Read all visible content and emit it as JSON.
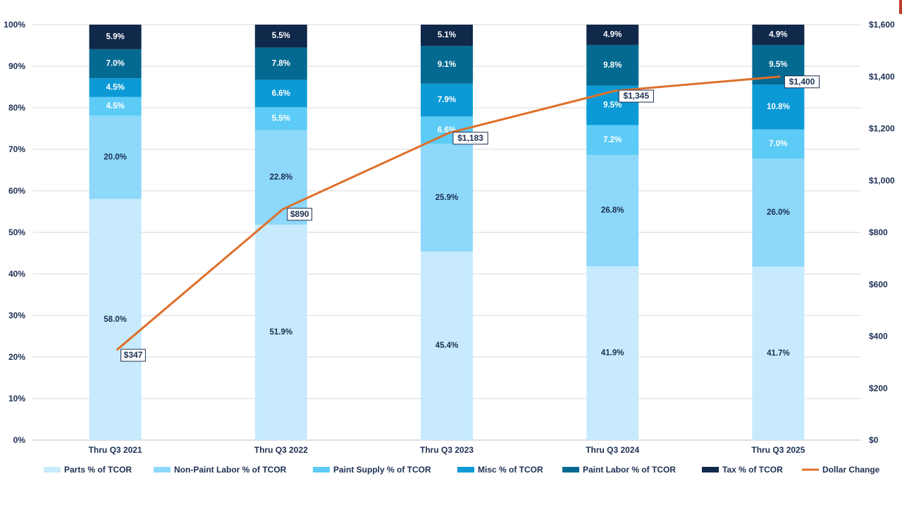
{
  "chart_data": {
    "type": "bar",
    "stacked": true,
    "categories": [
      "Thru Q3 2021",
      "Thru Q3 2022",
      "Thru Q3 2023",
      "Thru Q3 2024",
      "Thru Q3 2025"
    ],
    "series": [
      {
        "name": "Parts % of TCOR",
        "color": "#c7ebfc",
        "label_color": "#1c2f52",
        "values": [
          58.0,
          51.9,
          45.4,
          41.9,
          41.7
        ],
        "labels": [
          "58.0%",
          "51.9%",
          "45.4%",
          "41.9%",
          "41.7%"
        ]
      },
      {
        "name": "Non-Paint Labor % of TCOR",
        "color": "#8dd8fb",
        "label_color": "#1c2f52",
        "values": [
          20.0,
          22.8,
          25.9,
          26.8,
          26.0
        ],
        "labels": [
          "20.0%",
          "22.8%",
          "25.9%",
          "26.8%",
          "26.0%"
        ]
      },
      {
        "name": "Paint Supply % of TCOR",
        "color": "#5ccbf6",
        "label_color": "#ffffff",
        "values": [
          4.5,
          5.5,
          6.6,
          7.2,
          7.0
        ],
        "labels": [
          "4.5%",
          "5.5%",
          "6.6%",
          "7.2%",
          "7.0%"
        ]
      },
      {
        "name": "Misc % of TCOR",
        "color": "#0b9ad6",
        "label_color": "#ffffff",
        "values": [
          4.5,
          6.6,
          7.9,
          9.5,
          10.8
        ],
        "labels": [
          "4.5%",
          "6.6%",
          "7.9%",
          "9.5%",
          "10.8%"
        ]
      },
      {
        "name": "Paint Labor % of TCOR",
        "color": "#046a91",
        "label_color": "#ffffff",
        "values": [
          7.0,
          7.8,
          9.1,
          9.8,
          9.5
        ],
        "labels": [
          "7.0%",
          "7.8%",
          "9.1%",
          "9.8%",
          "9.5%"
        ]
      },
      {
        "name": "Tax % of TCOR",
        "color": "#10284a",
        "label_color": "#ffffff",
        "values": [
          5.9,
          5.5,
          5.1,
          4.9,
          4.9
        ],
        "labels": [
          "5.9%",
          "5.5%",
          "5.1%",
          "4.9%",
          "4.9%"
        ]
      }
    ],
    "line_series": {
      "name": "Dollar Change",
      "color": "#de6f2a",
      "axis": "right",
      "values": [
        347,
        890,
        1183,
        1345,
        1400
      ],
      "labels": [
        "$347",
        "$890",
        "$1,183",
        "$1,345",
        "$1,400"
      ]
    },
    "y_left": {
      "ylim": [
        0,
        100
      ],
      "ticks": [
        "0%",
        "10%",
        "20%",
        "30%",
        "40%",
        "50%",
        "60%",
        "70%",
        "80%",
        "90%",
        "100%"
      ]
    },
    "y_right": {
      "ylim": [
        0,
        1600
      ],
      "ticks": [
        "$0",
        "$200",
        "$400",
        "$600",
        "$800",
        "$1,000",
        "$1,200",
        "$1,400",
        "$1,600"
      ]
    },
    "grid": true,
    "legend": "bottom",
    "accent_color": "#c0392b"
  }
}
